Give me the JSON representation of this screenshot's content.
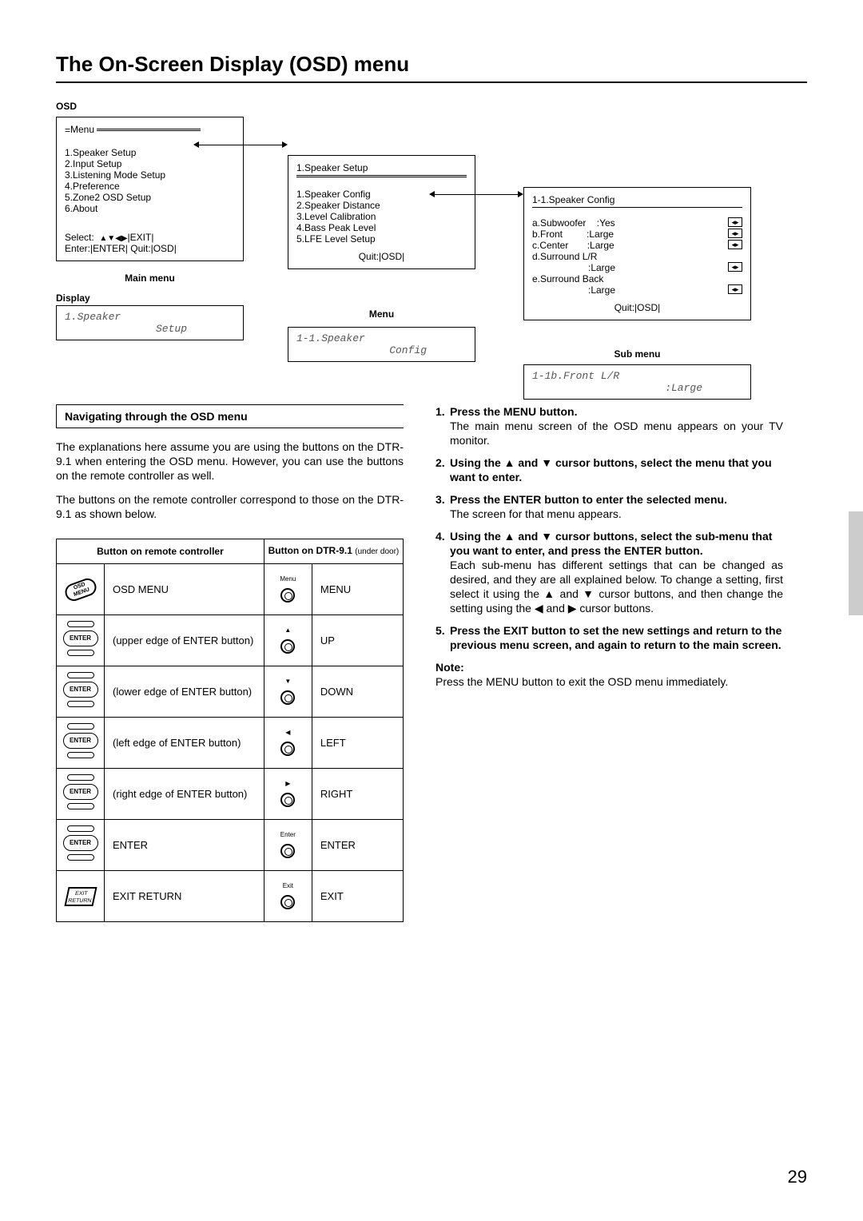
{
  "page": {
    "title": "The On-Screen Display (OSD) menu",
    "number": "29"
  },
  "osd": {
    "label": "OSD",
    "main": {
      "title": "Menu",
      "items": [
        "1.Speaker Setup",
        "2.Input Setup",
        "3.Listening Mode Setup",
        "4.Preference",
        "5.Zone2 OSD Setup",
        "6.About"
      ],
      "select": "Select:",
      "selectSym": "|EXIT|",
      "enter": "Enter:|ENTER| Quit:|OSD|",
      "caption": "Main menu"
    },
    "menu": {
      "title": "1.Speaker Setup",
      "items": [
        "1.Speaker Config",
        "2.Speaker Distance",
        "3.Level Calibration",
        "4.Bass Peak Level",
        "5.LFE Level Setup"
      ],
      "quit": "Quit:|OSD|",
      "caption": "Menu"
    },
    "sub": {
      "title": "1-1.Speaker Config",
      "rows": [
        {
          "k": "a.Subwoofer",
          "v": ":Yes"
        },
        {
          "k": "b.Front",
          "v": ":Large"
        },
        {
          "k": "c.Center",
          "v": ":Large"
        },
        {
          "k": "d.Surround L/R",
          "v": ""
        },
        {
          "k": "",
          "v": ":Large"
        },
        {
          "k": "e.Surround Back",
          "v": ""
        },
        {
          "k": "",
          "v": ":Large"
        }
      ],
      "quit": "Quit:|OSD|",
      "caption": "Sub menu"
    },
    "displayLabel": "Display",
    "disp1": {
      "l1": "1.Speaker",
      "l2": "    Setup"
    },
    "disp2": {
      "l1": "1-1.Speaker",
      "l2": "    Config"
    },
    "disp3": {
      "l1": "1-1b.Front L/R",
      "l2": "       :Large"
    }
  },
  "nav": {
    "heading": "Navigating through the OSD menu",
    "p1": "The explanations here assume you are using the buttons on the DTR-9.1 when entering the OSD menu. However, you can use the buttons on the remote controller as well.",
    "p2": "The buttons on the remote controller correspond to those on the DTR-9.1 as shown below."
  },
  "table": {
    "h1": "Button on remote controller",
    "h2": "Button on DTR-9.1 ",
    "h2s": "(under door)",
    "rows": [
      {
        "rIcon": "OSD MENU",
        "rLabel": "OSD MENU",
        "fTop": "Menu",
        "fLabel": "MENU",
        "mode": "oval-diag"
      },
      {
        "rIcon": "ENTER",
        "rLabel": "(upper edge of ENTER button)",
        "fTop": "▲",
        "fLabel": "UP",
        "mode": "enter"
      },
      {
        "rIcon": "ENTER",
        "rLabel": "(lower edge of ENTER button)",
        "fTop": "▼",
        "fLabel": "DOWN",
        "mode": "enter"
      },
      {
        "rIcon": "ENTER",
        "rLabel": "(left edge of ENTER button)",
        "fTop": "◀",
        "fLabel": "LEFT",
        "mode": "enter"
      },
      {
        "rIcon": "ENTER",
        "rLabel": "(right edge of ENTER button)",
        "fTop": "▶",
        "fLabel": "RIGHT",
        "mode": "enter"
      },
      {
        "rIcon": "ENTER",
        "rLabel": "ENTER",
        "fTop": "Enter",
        "fLabel": "ENTER",
        "mode": "enter"
      },
      {
        "rIcon": "EXIT RETURN",
        "rLabel": "EXIT RETURN",
        "fTop": "Exit",
        "fLabel": "EXIT",
        "mode": "hex"
      }
    ]
  },
  "steps": {
    "s1": {
      "h": "Press the MENU button.",
      "b": "The main menu screen of the OSD menu appears on your TV monitor."
    },
    "s2": {
      "h": "Using the ▲ and ▼ cursor buttons, select the menu that you want to enter."
    },
    "s3": {
      "h": "Press the ENTER button to enter the selected menu.",
      "b": "The screen for that menu appears."
    },
    "s4": {
      "h": "Using the ▲ and ▼ cursor buttons, select the sub-menu that you want to enter, and press the ENTER button.",
      "b": "Each sub-menu has different settings that can be changed as desired, and they are all explained below. To change a setting, first select it using the ▲ and ▼ cursor buttons, and then change the setting using the ◀ and ▶ cursor buttons."
    },
    "s5": {
      "h": "Press the EXIT button to set the new settings and return to the previous menu screen, and again to return to the main screen."
    },
    "noteHead": "Note:",
    "note": "Press the MENU button to exit the OSD menu immediately."
  }
}
